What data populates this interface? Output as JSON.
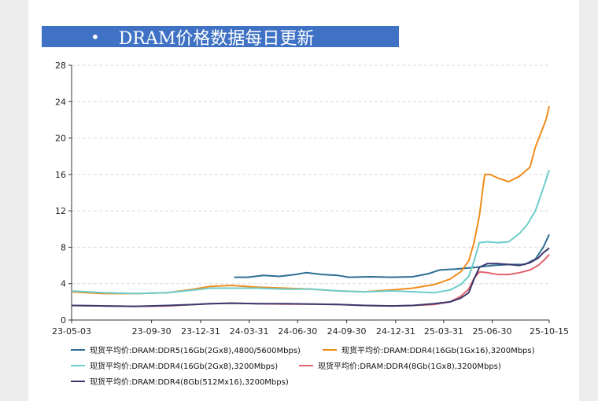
{
  "banner": {
    "bullet": "•",
    "title": "DRAM价格数据每日更新"
  },
  "chart_data": {
    "type": "line",
    "title": "DRAM价格数据每日更新",
    "xlabel": "",
    "ylabel": "",
    "ylim": [
      0,
      28
    ],
    "yticks": [
      0,
      4,
      8,
      12,
      16,
      20,
      24,
      28
    ],
    "x_tick_labels": [
      "23-05-03",
      "23-09-30",
      "23-12-31",
      "24-03-31",
      "24-06-30",
      "24-09-30",
      "24-12-31",
      "25-03-31",
      "25-06-30",
      "25-10-15"
    ],
    "x_tick_days": [
      0,
      150,
      242,
      333,
      424,
      516,
      608,
      698,
      789,
      896
    ],
    "x_range_days": [
      0,
      896
    ],
    "grid": "horizontal dashed",
    "legend_position": "bottom",
    "series": [
      {
        "name": "现货平均价:DRAM:DDR5(16Gb(2Gx8),4800/5600Mbps)",
        "color": "#2d6e96",
        "x": [
          305,
          330,
          360,
          390,
          420,
          440,
          470,
          500,
          520,
          560,
          600,
          640,
          670,
          690,
          720,
          760,
          790,
          820,
          850,
          870,
          885,
          896
        ],
        "y": [
          4.7,
          4.7,
          4.9,
          4.8,
          5.0,
          5.2,
          5.0,
          4.9,
          4.7,
          4.75,
          4.7,
          4.75,
          5.1,
          5.5,
          5.6,
          5.8,
          6.0,
          6.1,
          6.1,
          6.7,
          8.0,
          9.4
        ]
      },
      {
        "name": "现货平均价:DRAM:DDR4(16Gb(1Gx16),3200Mbps)",
        "color": "#f08c1c",
        "x": [
          0,
          60,
          120,
          180,
          230,
          260,
          300,
          350,
          400,
          450,
          500,
          550,
          600,
          640,
          680,
          710,
          730,
          745,
          755,
          765,
          775,
          785,
          800,
          820,
          840,
          860,
          870,
          880,
          890,
          896
        ],
        "y": [
          3.1,
          2.9,
          2.9,
          3.0,
          3.4,
          3.7,
          3.8,
          3.6,
          3.5,
          3.4,
          3.2,
          3.1,
          3.3,
          3.5,
          3.9,
          4.5,
          5.3,
          6.5,
          8.5,
          11.5,
          16.0,
          16.0,
          15.6,
          15.2,
          15.8,
          16.8,
          19.0,
          20.5,
          22.0,
          23.5
        ]
      },
      {
        "name": "现货平均价:DRAM:DDR4(16Gb(2Gx8),3200Mbps)",
        "color": "#6ccdcb",
        "x": [
          0,
          60,
          120,
          180,
          230,
          260,
          300,
          350,
          400,
          450,
          500,
          550,
          600,
          640,
          680,
          710,
          730,
          745,
          755,
          765,
          780,
          800,
          820,
          840,
          855,
          870,
          885,
          896
        ],
        "y": [
          3.2,
          3.0,
          2.9,
          3.0,
          3.3,
          3.5,
          3.5,
          3.5,
          3.4,
          3.4,
          3.2,
          3.1,
          3.2,
          3.1,
          3.0,
          3.3,
          3.9,
          4.8,
          6.5,
          8.5,
          8.6,
          8.5,
          8.6,
          9.5,
          10.5,
          12.0,
          14.5,
          16.5
        ]
      },
      {
        "name": "现货平均价:DRAM:DDR4(8Gb(1Gx8),3200Mbps)",
        "color": "#e0636e",
        "x": [
          0,
          60,
          120,
          180,
          230,
          260,
          300,
          350,
          400,
          450,
          500,
          550,
          600,
          640,
          680,
          710,
          730,
          745,
          755,
          765,
          780,
          800,
          820,
          840,
          860,
          875,
          885,
          896
        ],
        "y": [
          1.6,
          1.55,
          1.5,
          1.55,
          1.7,
          1.8,
          1.85,
          1.8,
          1.75,
          1.75,
          1.7,
          1.6,
          1.55,
          1.6,
          1.7,
          2.0,
          2.6,
          3.4,
          4.6,
          5.3,
          5.2,
          5.0,
          5.0,
          5.2,
          5.5,
          6.0,
          6.5,
          7.2
        ]
      },
      {
        "name": "现货平均价:DRAM:DDR4(8Gb(512Mx16),3200Mbps)",
        "color": "#3b3a6e",
        "x": [
          0,
          60,
          120,
          180,
          230,
          260,
          300,
          350,
          400,
          450,
          500,
          550,
          600,
          640,
          680,
          710,
          730,
          745,
          755,
          765,
          780,
          800,
          820,
          840,
          860,
          875,
          885,
          896
        ],
        "y": [
          1.6,
          1.55,
          1.5,
          1.6,
          1.7,
          1.8,
          1.85,
          1.8,
          1.8,
          1.75,
          1.7,
          1.6,
          1.55,
          1.6,
          1.8,
          2.0,
          2.4,
          3.0,
          4.5,
          5.8,
          6.2,
          6.2,
          6.1,
          6.0,
          6.3,
          6.8,
          7.4,
          7.9
        ]
      }
    ]
  }
}
